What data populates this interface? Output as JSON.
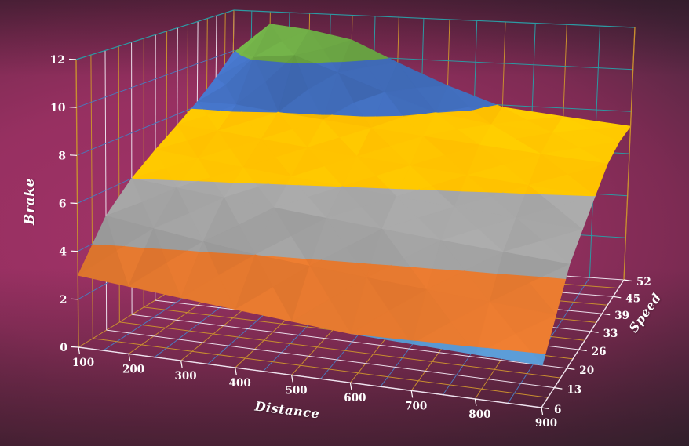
{
  "chart_data": {
    "type": "surface-3d",
    "title": "",
    "x_axis": {
      "title": "Distance",
      "ticks": [
        "100",
        "200",
        "300",
        "400",
        "500",
        "600",
        "700",
        "800",
        "900"
      ]
    },
    "series_axis": {
      "title": "Speed",
      "ticks": [
        "6",
        "13",
        "20",
        "26",
        "33",
        "39",
        "45",
        "52"
      ]
    },
    "z_axis": {
      "title": "Brake",
      "ticks": [
        "0",
        "2",
        "4",
        "6",
        "8",
        "10",
        "12"
      ],
      "min": 0,
      "max": 12,
      "major_unit": 2
    },
    "series": [
      {
        "speed": "6",
        "values": [
          3.0,
          2.8,
          2.6,
          2.4,
          2.2,
          2.0,
          1.9,
          1.8,
          1.7
        ]
      },
      {
        "speed": "13",
        "values": [
          4.9,
          4.6,
          4.3,
          4.0,
          3.8,
          3.6,
          3.4,
          3.2,
          3.0
        ]
      },
      {
        "speed": "20",
        "values": [
          6.0,
          5.8,
          5.6,
          5.4,
          5.2,
          5.0,
          4.8,
          4.6,
          4.4
        ]
      },
      {
        "speed": "26",
        "values": [
          6.8,
          6.6,
          6.4,
          6.2,
          6.0,
          5.8,
          5.6,
          5.4,
          5.2
        ]
      },
      {
        "speed": "33",
        "values": [
          7.5,
          7.4,
          7.2,
          7.0,
          6.8,
          6.6,
          6.4,
          6.2,
          6.0
        ]
      },
      {
        "speed": "39",
        "values": [
          8.2,
          8.2,
          8.0,
          7.8,
          7.6,
          7.4,
          7.2,
          7.0,
          6.8
        ]
      },
      {
        "speed": "45",
        "values": [
          9.0,
          10.1,
          10.3,
          9.6,
          8.8,
          8.0,
          7.6,
          7.4,
          7.2
        ]
      },
      {
        "speed": "52",
        "values": [
          9.9,
          11.4,
          11.2,
          10.8,
          9.8,
          8.8,
          7.9,
          7.6,
          7.3
        ]
      }
    ],
    "bands": [
      {
        "range": "0-2",
        "color": "#5B9BD5"
      },
      {
        "range": "2-4",
        "color": "#ED7D31"
      },
      {
        "range": "4-6",
        "color": "#A5A5A5"
      },
      {
        "range": "6-8",
        "color": "#FFC000"
      },
      {
        "range": "8-10",
        "color": "#4472C4"
      },
      {
        "range": "10-12",
        "color": "#70AD47"
      }
    ],
    "legend": {
      "visible": false
    },
    "grid": {
      "on": true,
      "wall_minor_per_category": 2
    },
    "projection": {
      "floor": {
        "c00": [
          100,
          443
        ],
        "c10": [
          690,
          520
        ],
        "c11": [
          795,
          357
        ],
        "c01": [
          294,
          324
        ]
      },
      "top": {
        "c00": [
          97,
          76
        ],
        "c10": [
          698,
          140
        ],
        "c11": [
          809,
          35
        ],
        "c01": [
          298,
          13
        ]
      },
      "den": {
        "gu": -0.147,
        "gv": 0.353,
        "guv": -0.26
      }
    }
  },
  "colors": {
    "background_center": "#A23368",
    "background_edge": "#372430",
    "grid_teal": "#2C9AA3",
    "grid_orange": "#C98E2F",
    "grid_white": "#EBDDEA",
    "grid_blue": "#4A79BC",
    "axis_line": "#EFE3EF",
    "tick": "#FFFFFF",
    "label": "#FFFFFF"
  }
}
